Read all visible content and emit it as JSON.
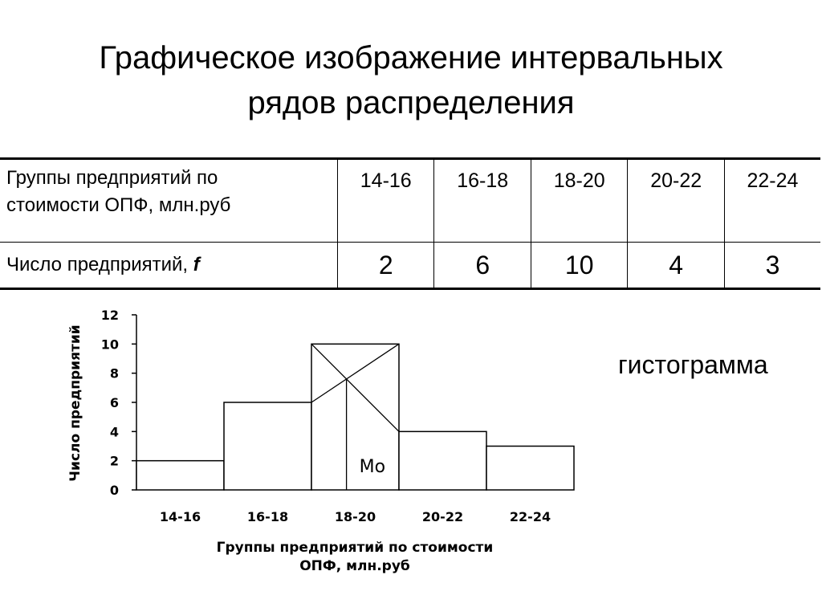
{
  "slide": {
    "title_line1": "Графическое изображение интервальных",
    "title_line2": "рядов распределения",
    "histogram_label": "гистограмма"
  },
  "table": {
    "header_line1": "Группы предприятий по",
    "header_line2": "стоимости ОПФ, млн.руб",
    "row2_label": "Число предприятий, ",
    "row2_symbol": "f",
    "ranges": [
      "14-16",
      "16-18",
      "18-20",
      "20-22",
      "22-24"
    ],
    "counts": [
      "2",
      "6",
      "10",
      "4",
      "3"
    ]
  },
  "chart_data": {
    "type": "bar",
    "title": "",
    "categories": [
      "14-16",
      "16-18",
      "18-20",
      "20-22",
      "22-24"
    ],
    "values": [
      2,
      6,
      10,
      4,
      3
    ],
    "xlabel_line1": "Группы предприятий по стоимости",
    "xlabel_line2": "ОПФ, млн.руб",
    "ylabel": "Число предприятий",
    "ylim": [
      0,
      12
    ],
    "yticks": [
      0,
      2,
      4,
      6,
      8,
      10,
      12
    ],
    "grid": false,
    "legend": "none",
    "mode_label": "Мо",
    "mode_interval": "18-20",
    "bar_color": "#ffffff",
    "line_color": "#000000"
  }
}
